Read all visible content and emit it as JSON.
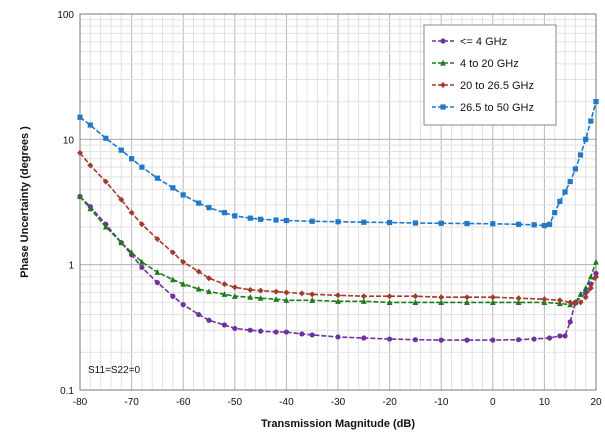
{
  "chart_data": {
    "type": "line",
    "xlabel": "Transmission Magnitude  (dB)",
    "ylabel": "Phase  Uncertainty  (degrees )",
    "xlim": [
      -80,
      20
    ],
    "ylim": [
      0.1,
      100
    ],
    "yscale": "log",
    "grid": true,
    "legend_position": "top-right",
    "x_ticks": [
      "-80",
      "-70",
      "-60",
      "-50",
      "-40",
      "-30",
      "-20",
      "-10",
      "0",
      "10",
      "20"
    ],
    "y_ticks": [
      "0.1",
      "1",
      "10",
      "100"
    ],
    "annotation": "S11=S22=0",
    "series": [
      {
        "name": "<= 4 GHz",
        "color": "#7030a0",
        "marker": "circle",
        "points": [
          [
            -80,
            3.5
          ],
          [
            -78,
            2.9
          ],
          [
            -75,
            2.1
          ],
          [
            -72,
            1.5
          ],
          [
            -70,
            1.2
          ],
          [
            -68,
            0.95
          ],
          [
            -65,
            0.72
          ],
          [
            -62,
            0.56
          ],
          [
            -60,
            0.48
          ],
          [
            -57,
            0.4
          ],
          [
            -55,
            0.36
          ],
          [
            -52,
            0.33
          ],
          [
            -50,
            0.31
          ],
          [
            -47,
            0.3
          ],
          [
            -45,
            0.295
          ],
          [
            -42,
            0.29
          ],
          [
            -40,
            0.29
          ],
          [
            -37,
            0.28
          ],
          [
            -35,
            0.275
          ],
          [
            -30,
            0.265
          ],
          [
            -25,
            0.26
          ],
          [
            -20,
            0.255
          ],
          [
            -15,
            0.252
          ],
          [
            -10,
            0.25
          ],
          [
            -5,
            0.25
          ],
          [
            0,
            0.25
          ],
          [
            5,
            0.252
          ],
          [
            8,
            0.255
          ],
          [
            11,
            0.26
          ],
          [
            13,
            0.27
          ],
          [
            14,
            0.27
          ],
          [
            15,
            0.35
          ],
          [
            16,
            0.5
          ],
          [
            18,
            0.6
          ],
          [
            19,
            0.7
          ],
          [
            20,
            0.85
          ]
        ]
      },
      {
        "name": "4 to 20 GHz",
        "color": "#1f7a1f",
        "marker": "triangle",
        "points": [
          [
            -80,
            3.5
          ],
          [
            -78,
            2.8
          ],
          [
            -75,
            2.0
          ],
          [
            -72,
            1.5
          ],
          [
            -70,
            1.25
          ],
          [
            -68,
            1.05
          ],
          [
            -65,
            0.87
          ],
          [
            -62,
            0.76
          ],
          [
            -60,
            0.7
          ],
          [
            -57,
            0.64
          ],
          [
            -55,
            0.61
          ],
          [
            -52,
            0.58
          ],
          [
            -50,
            0.56
          ],
          [
            -47,
            0.55
          ],
          [
            -45,
            0.54
          ],
          [
            -42,
            0.53
          ],
          [
            -40,
            0.52
          ],
          [
            -35,
            0.52
          ],
          [
            -30,
            0.51
          ],
          [
            -25,
            0.51
          ],
          [
            -20,
            0.5
          ],
          [
            -15,
            0.5
          ],
          [
            -10,
            0.5
          ],
          [
            -5,
            0.5
          ],
          [
            0,
            0.5
          ],
          [
            5,
            0.5
          ],
          [
            10,
            0.5
          ],
          [
            13,
            0.49
          ],
          [
            15,
            0.48
          ],
          [
            16,
            0.5
          ],
          [
            17,
            0.58
          ],
          [
            18,
            0.65
          ],
          [
            19,
            0.8
          ],
          [
            20,
            1.05
          ]
        ]
      },
      {
        "name": "20 to 26.5 GHz",
        "color": "#a33a2a",
        "marker": "diamond",
        "points": [
          [
            -80,
            7.8
          ],
          [
            -78,
            6.2
          ],
          [
            -75,
            4.6
          ],
          [
            -72,
            3.3
          ],
          [
            -70,
            2.6
          ],
          [
            -68,
            2.1
          ],
          [
            -65,
            1.6
          ],
          [
            -62,
            1.25
          ],
          [
            -60,
            1.05
          ],
          [
            -57,
            0.88
          ],
          [
            -55,
            0.78
          ],
          [
            -52,
            0.7
          ],
          [
            -50,
            0.66
          ],
          [
            -47,
            0.63
          ],
          [
            -45,
            0.62
          ],
          [
            -42,
            0.61
          ],
          [
            -40,
            0.6
          ],
          [
            -37,
            0.59
          ],
          [
            -35,
            0.58
          ],
          [
            -30,
            0.57
          ],
          [
            -25,
            0.56
          ],
          [
            -20,
            0.56
          ],
          [
            -15,
            0.56
          ],
          [
            -10,
            0.55
          ],
          [
            -5,
            0.55
          ],
          [
            0,
            0.55
          ],
          [
            5,
            0.54
          ],
          [
            10,
            0.53
          ],
          [
            13,
            0.52
          ],
          [
            15,
            0.5
          ],
          [
            16,
            0.49
          ],
          [
            17,
            0.5
          ],
          [
            18,
            0.55
          ],
          [
            19,
            0.65
          ],
          [
            20,
            0.8
          ]
        ]
      },
      {
        "name": "26.5 to 50 GHz",
        "color": "#1f78c8",
        "marker": "square",
        "points": [
          [
            -80,
            15
          ],
          [
            -78,
            13
          ],
          [
            -75,
            10.2
          ],
          [
            -72,
            8.2
          ],
          [
            -70,
            7.0
          ],
          [
            -68,
            6.0
          ],
          [
            -65,
            4.9
          ],
          [
            -62,
            4.1
          ],
          [
            -60,
            3.6
          ],
          [
            -57,
            3.1
          ],
          [
            -55,
            2.85
          ],
          [
            -52,
            2.6
          ],
          [
            -50,
            2.45
          ],
          [
            -47,
            2.35
          ],
          [
            -45,
            2.3
          ],
          [
            -42,
            2.27
          ],
          [
            -40,
            2.25
          ],
          [
            -35,
            2.22
          ],
          [
            -30,
            2.2
          ],
          [
            -25,
            2.18
          ],
          [
            -20,
            2.17
          ],
          [
            -15,
            2.15
          ],
          [
            -10,
            2.14
          ],
          [
            -5,
            2.13
          ],
          [
            0,
            2.12
          ],
          [
            5,
            2.1
          ],
          [
            8,
            2.08
          ],
          [
            10,
            2.05
          ],
          [
            11,
            2.1
          ],
          [
            12,
            2.6
          ],
          [
            13,
            3.2
          ],
          [
            14,
            3.8
          ],
          [
            15,
            4.6
          ],
          [
            16,
            5.8
          ],
          [
            17,
            7.5
          ],
          [
            18,
            10
          ],
          [
            19,
            14
          ],
          [
            20,
            20
          ]
        ]
      }
    ]
  }
}
